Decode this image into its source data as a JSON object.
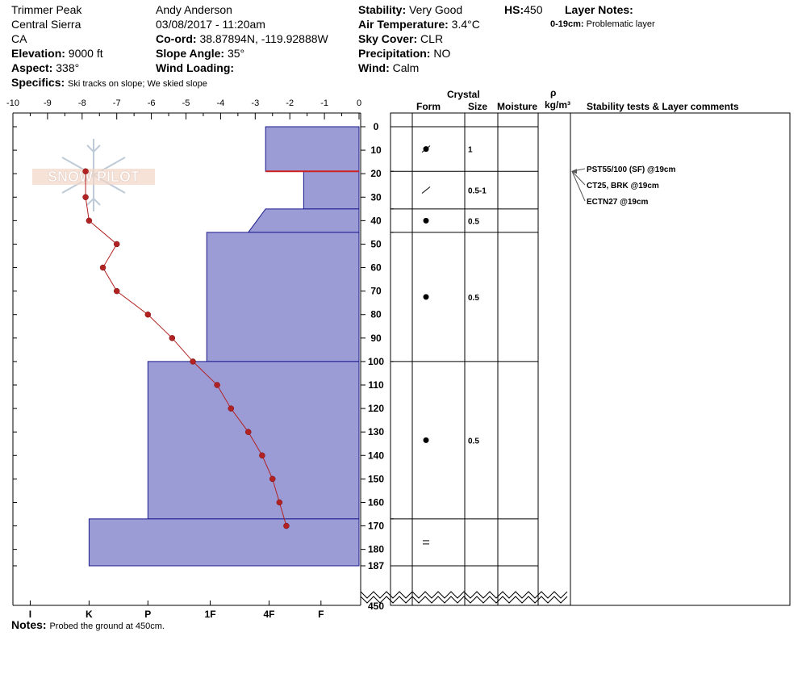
{
  "header": {
    "location": "Trimmer Peak",
    "region": "Central Sierra",
    "state": "CA",
    "elevation_label": "Elevation:",
    "elevation": "9000 ft",
    "aspect_label": "Aspect:",
    "aspect": "338°",
    "specifics_label": "Specifics:",
    "specifics": "Ski tracks on slope; We skied slope",
    "observer": "Andy Anderson",
    "datetime": "03/08/2017 - 11:20am",
    "coord_label": "Co-ord:",
    "coord": "38.87894N, -119.92888W",
    "slope_label": "Slope Angle:",
    "slope": "35°",
    "wind_loading_label": "Wind Loading:",
    "wind_loading": "",
    "stability_label": "Stability:",
    "stability": "Very Good",
    "air_temp_label": "Air Temperature:",
    "air_temp": "3.4°C",
    "sky_label": "Sky Cover:",
    "sky": "CLR",
    "precip_label": "Precipitation:",
    "precip": "NO",
    "wind_label": "Wind:",
    "wind": "Calm",
    "hs_label": "HS:",
    "hs": "450",
    "layer_notes_label": "Layer Notes:",
    "layer_note_range": "0-19cm:",
    "layer_note_text": "Problematic layer"
  },
  "notes_label": "Notes:",
  "notes": "Probed the ground at 450cm.",
  "logo_text": "SNOW PILOT",
  "columns": {
    "crystal": "Crystal",
    "form": "Form",
    "size": "Size",
    "moisture": "Moisture",
    "density_symbol": "ρ",
    "density_unit": "kg/m³",
    "stability_comments": "Stability tests & Layer comments"
  },
  "colors": {
    "hardness_fill": "#9b9bd5",
    "hardness_stroke": "#1a1a8c",
    "temp_line": "#b22222",
    "problem_layer": "#cc2222"
  },
  "chart_data": {
    "type": "line",
    "temperature_axis": {
      "ticks": [
        -10,
        -9,
        -8,
        -7,
        -6,
        -5,
        -4,
        -3,
        -2,
        -1,
        0
      ],
      "range": [
        -10,
        0
      ]
    },
    "depth_axis": {
      "ticks": [
        0,
        10,
        20,
        30,
        40,
        50,
        60,
        70,
        80,
        90,
        100,
        110,
        120,
        130,
        140,
        150,
        160,
        170,
        180,
        187
      ],
      "bottom_label": "450",
      "range": [
        0,
        187
      ]
    },
    "hardness_axis": {
      "labels": [
        "I",
        "K",
        "P",
        "1F",
        "4F",
        "F"
      ],
      "label_positions": [
        -9.5,
        -7.8,
        -6.1,
        -4.3,
        -2.6,
        -1.1
      ]
    },
    "temperature_profile": {
      "depth": [
        19,
        30,
        40,
        50,
        60,
        70,
        80,
        90,
        100,
        110,
        120,
        130,
        140,
        150,
        160,
        170
      ],
      "temp": [
        -7.9,
        -7.9,
        -7.8,
        -7.0,
        -7.4,
        -7.0,
        -6.1,
        -5.4,
        -4.8,
        -4.1,
        -3.7,
        -3.2,
        -2.8,
        -2.5,
        -2.3,
        -2.1
      ]
    },
    "hardness_layers": [
      {
        "top": 0,
        "bottom": 19,
        "hardness": -2.7
      },
      {
        "top": 19,
        "bottom": 35,
        "hardness": -1.6
      },
      {
        "top": 35,
        "bottom": 45,
        "hardness": -2.7,
        "top_hardness": -2.7,
        "bottom_hardness": -3.2
      },
      {
        "top": 45,
        "bottom": 100,
        "hardness": -4.4
      },
      {
        "top": 100,
        "bottom": 167,
        "hardness": -6.1
      },
      {
        "top": 167,
        "bottom": 187,
        "hardness": -7.8
      }
    ],
    "problem_layer_depth": 19,
    "layer_boundaries": [
      0,
      19,
      35,
      45,
      100,
      167,
      187
    ],
    "crystal_layers": [
      {
        "top": 0,
        "bottom": 19,
        "form": "decomposing",
        "size": "1"
      },
      {
        "top": 19,
        "bottom": 35,
        "form": "faceted",
        "size": "0.5-1"
      },
      {
        "top": 35,
        "bottom": 45,
        "form": "rounded",
        "size": "0.5"
      },
      {
        "top": 45,
        "bottom": 100,
        "form": "rounded",
        "size": "0.5"
      },
      {
        "top": 100,
        "bottom": 167,
        "form": "rounded",
        "size": "0.5"
      },
      {
        "top": 167,
        "bottom": 187,
        "form": "melt-freeze",
        "size": ""
      }
    ],
    "stability_tests": [
      {
        "label": "PST55/100 (SF) @19cm",
        "depth": 19
      },
      {
        "label": "CT25, BRK @19cm",
        "depth": 19
      },
      {
        "label": "ECTN27 @19cm",
        "depth": 19
      }
    ]
  }
}
